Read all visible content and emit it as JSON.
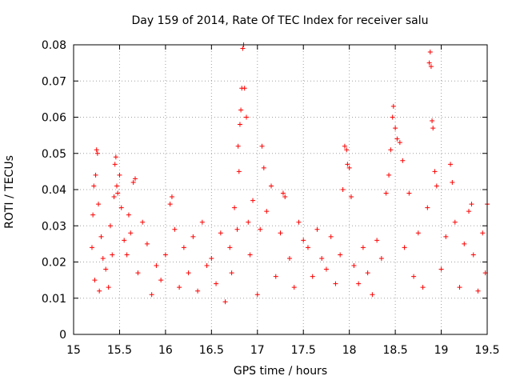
{
  "chart_data": {
    "type": "scatter",
    "title": "Day 159 of 2014, Rate Of TEC Index for receiver salu",
    "xlabel": "GPS time / hours",
    "ylabel": "ROTI / TECUs",
    "xlim": [
      15,
      19.5
    ],
    "ylim": [
      0,
      0.08
    ],
    "xticks": [
      15,
      15.5,
      16,
      16.5,
      17,
      17.5,
      18,
      18.5,
      19,
      19.5
    ],
    "xtick_labels": [
      "15",
      "15.5",
      "16",
      "16.5",
      "17",
      "17.5",
      "18",
      "18.5",
      "19",
      "19.5"
    ],
    "yticks": [
      0,
      0.01,
      0.02,
      0.03,
      0.04,
      0.05,
      0.06,
      0.07,
      0.08
    ],
    "ytick_labels": [
      "0",
      "0.01",
      "0.02",
      "0.03",
      "0.04",
      "0.05",
      "0.06",
      "0.07",
      "0.08"
    ],
    "grid": true,
    "marker": "+",
    "color": "#ff0000",
    "series": [
      {
        "name": "ROTI",
        "points": [
          [
            15.2,
            0.024
          ],
          [
            15.21,
            0.033
          ],
          [
            15.22,
            0.041
          ],
          [
            15.23,
            0.015
          ],
          [
            15.24,
            0.044
          ],
          [
            15.25,
            0.051
          ],
          [
            15.26,
            0.05
          ],
          [
            15.27,
            0.036
          ],
          [
            15.28,
            0.012
          ],
          [
            15.3,
            0.027
          ],
          [
            15.32,
            0.021
          ],
          [
            15.35,
            0.018
          ],
          [
            15.38,
            0.013
          ],
          [
            15.4,
            0.03
          ],
          [
            15.42,
            0.022
          ],
          [
            15.44,
            0.038
          ],
          [
            15.45,
            0.047
          ],
          [
            15.46,
            0.049
          ],
          [
            15.47,
            0.041
          ],
          [
            15.48,
            0.039
          ],
          [
            15.5,
            0.044
          ],
          [
            15.52,
            0.035
          ],
          [
            15.55,
            0.026
          ],
          [
            15.58,
            0.022
          ],
          [
            15.6,
            0.033
          ],
          [
            15.62,
            0.028
          ],
          [
            15.65,
            0.042
          ],
          [
            15.67,
            0.043
          ],
          [
            15.7,
            0.017
          ],
          [
            15.75,
            0.031
          ],
          [
            15.8,
            0.025
          ],
          [
            15.85,
            0.011
          ],
          [
            15.9,
            0.019
          ],
          [
            15.95,
            0.015
          ],
          [
            16.0,
            0.022
          ],
          [
            16.05,
            0.036
          ],
          [
            16.07,
            0.038
          ],
          [
            16.1,
            0.029
          ],
          [
            16.15,
            0.013
          ],
          [
            16.2,
            0.024
          ],
          [
            16.25,
            0.017
          ],
          [
            16.3,
            0.027
          ],
          [
            16.35,
            0.012
          ],
          [
            16.4,
            0.031
          ],
          [
            16.45,
            0.019
          ],
          [
            16.5,
            0.021
          ],
          [
            16.55,
            0.014
          ],
          [
            16.6,
            0.028
          ],
          [
            16.65,
            0.009
          ],
          [
            16.7,
            0.024
          ],
          [
            16.72,
            0.017
          ],
          [
            16.75,
            0.035
          ],
          [
            16.78,
            0.029
          ],
          [
            16.79,
            0.052
          ],
          [
            16.8,
            0.045
          ],
          [
            16.81,
            0.058
          ],
          [
            16.82,
            0.062
          ],
          [
            16.83,
            0.068
          ],
          [
            16.84,
            0.079
          ],
          [
            16.85,
            0.08
          ],
          [
            16.86,
            0.068
          ],
          [
            16.88,
            0.06
          ],
          [
            16.9,
            0.031
          ],
          [
            16.92,
            0.022
          ],
          [
            16.95,
            0.037
          ],
          [
            17.0,
            0.011
          ],
          [
            17.03,
            0.029
          ],
          [
            17.05,
            0.052
          ],
          [
            17.07,
            0.046
          ],
          [
            17.1,
            0.034
          ],
          [
            17.15,
            0.041
          ],
          [
            17.2,
            0.016
          ],
          [
            17.25,
            0.028
          ],
          [
            17.28,
            0.039
          ],
          [
            17.3,
            0.038
          ],
          [
            17.35,
            0.021
          ],
          [
            17.4,
            0.013
          ],
          [
            17.45,
            0.031
          ],
          [
            17.5,
            0.026
          ],
          [
            17.55,
            0.024
          ],
          [
            17.6,
            0.016
          ],
          [
            17.65,
            0.029
          ],
          [
            17.7,
            0.021
          ],
          [
            17.75,
            0.018
          ],
          [
            17.8,
            0.027
          ],
          [
            17.85,
            0.014
          ],
          [
            17.9,
            0.022
          ],
          [
            17.93,
            0.04
          ],
          [
            17.95,
            0.052
          ],
          [
            17.97,
            0.051
          ],
          [
            17.98,
            0.047
          ],
          [
            18.0,
            0.046
          ],
          [
            18.02,
            0.038
          ],
          [
            18.05,
            0.019
          ],
          [
            18.1,
            0.014
          ],
          [
            18.15,
            0.024
          ],
          [
            18.2,
            0.017
          ],
          [
            18.25,
            0.011
          ],
          [
            18.3,
            0.026
          ],
          [
            18.35,
            0.021
          ],
          [
            18.4,
            0.039
          ],
          [
            18.43,
            0.044
          ],
          [
            18.45,
            0.051
          ],
          [
            18.47,
            0.06
          ],
          [
            18.48,
            0.063
          ],
          [
            18.5,
            0.057
          ],
          [
            18.52,
            0.054
          ],
          [
            18.55,
            0.053
          ],
          [
            18.58,
            0.048
          ],
          [
            18.6,
            0.024
          ],
          [
            18.65,
            0.039
          ],
          [
            18.7,
            0.016
          ],
          [
            18.75,
            0.028
          ],
          [
            18.8,
            0.013
          ],
          [
            18.85,
            0.035
          ],
          [
            18.87,
            0.075
          ],
          [
            18.88,
            0.078
          ],
          [
            18.89,
            0.074
          ],
          [
            18.9,
            0.059
          ],
          [
            18.91,
            0.057
          ],
          [
            18.93,
            0.045
          ],
          [
            18.95,
            0.041
          ],
          [
            19.0,
            0.018
          ],
          [
            19.05,
            0.027
          ],
          [
            19.1,
            0.047
          ],
          [
            19.12,
            0.042
          ],
          [
            19.15,
            0.031
          ],
          [
            19.2,
            0.013
          ],
          [
            19.25,
            0.025
          ],
          [
            19.3,
            0.034
          ],
          [
            19.33,
            0.036
          ],
          [
            19.35,
            0.022
          ],
          [
            19.4,
            0.012
          ],
          [
            19.45,
            0.028
          ],
          [
            19.48,
            0.017
          ],
          [
            19.5,
            0.036
          ]
        ]
      }
    ]
  }
}
